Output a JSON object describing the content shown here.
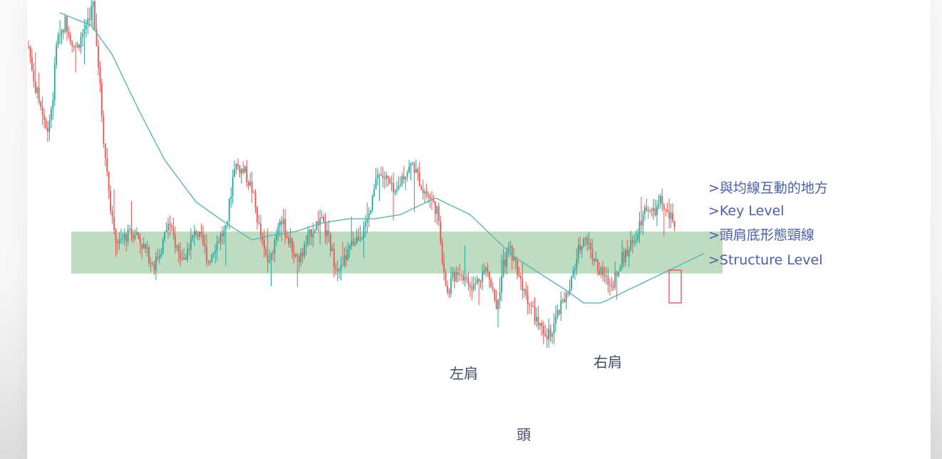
{
  "chart_data": {
    "type": "candlestick",
    "title": "",
    "xlabel": "",
    "ylabel": "",
    "ylim": [
      0,
      100
    ],
    "colors": {
      "up": "#26a69a",
      "down": "#ef5350",
      "ma": "#5fb3b3",
      "zone": "#8dc08d",
      "marker": "#d9534f"
    },
    "annotations": {
      "notes": [
        ">與均線互動的地方",
        ">Key Level",
        ">頭肩底形態頸線",
        ">Structure Level"
      ],
      "left_shoulder": "左肩",
      "head": "頭",
      "right_shoulder": "右肩"
    },
    "key_level_zone": {
      "from": 38,
      "to": 48
    },
    "price_path": [
      [
        0,
        92
      ],
      [
        4,
        82
      ],
      [
        8,
        77
      ],
      [
        11,
        72
      ],
      [
        14,
        80
      ],
      [
        16,
        93
      ],
      [
        21,
        98
      ],
      [
        27,
        91
      ],
      [
        31,
        95
      ],
      [
        37,
        102
      ],
      [
        40,
        88
      ],
      [
        43,
        70
      ],
      [
        46,
        58
      ],
      [
        49,
        47
      ],
      [
        52,
        45
      ],
      [
        56,
        47
      ],
      [
        61,
        48
      ],
      [
        65,
        45
      ],
      [
        69,
        42
      ],
      [
        72,
        40
      ],
      [
        76,
        44
      ],
      [
        80,
        50
      ],
      [
        86,
        43
      ],
      [
        89,
        41
      ],
      [
        92,
        45
      ],
      [
        96,
        48
      ],
      [
        100,
        45
      ],
      [
        103,
        41
      ],
      [
        106,
        44
      ],
      [
        110,
        47
      ],
      [
        113,
        48
      ],
      [
        118,
        64
      ],
      [
        124,
        62
      ],
      [
        128,
        58
      ],
      [
        132,
        49
      ],
      [
        135,
        43
      ],
      [
        138,
        40
      ],
      [
        140,
        44
      ],
      [
        144,
        52
      ],
      [
        148,
        47
      ],
      [
        152,
        43
      ],
      [
        155,
        41
      ],
      [
        158,
        44
      ],
      [
        162,
        48
      ],
      [
        167,
        51
      ],
      [
        172,
        46
      ],
      [
        175,
        41
      ],
      [
        179,
        39
      ],
      [
        183,
        43
      ],
      [
        187,
        46
      ],
      [
        192,
        48
      ],
      [
        196,
        53
      ],
      [
        200,
        62
      ],
      [
        206,
        60
      ],
      [
        210,
        56
      ],
      [
        214,
        61
      ],
      [
        220,
        64
      ],
      [
        226,
        58
      ],
      [
        230,
        56
      ],
      [
        234,
        53
      ],
      [
        236,
        45
      ],
      [
        238,
        39
      ],
      [
        240,
        33
      ],
      [
        242,
        36
      ],
      [
        246,
        39
      ],
      [
        250,
        37
      ],
      [
        254,
        34
      ],
      [
        258,
        37
      ],
      [
        262,
        39
      ],
      [
        266,
        35
      ],
      [
        268,
        30
      ],
      [
        272,
        40
      ],
      [
        276,
        44
      ],
      [
        280,
        39
      ],
      [
        284,
        34
      ],
      [
        288,
        30
      ],
      [
        292,
        26
      ],
      [
        296,
        22
      ],
      [
        300,
        25
      ],
      [
        305,
        30
      ],
      [
        310,
        34
      ],
      [
        314,
        42
      ],
      [
        318,
        47
      ],
      [
        322,
        44
      ],
      [
        326,
        39
      ],
      [
        330,
        37
      ],
      [
        334,
        35
      ],
      [
        338,
        40
      ],
      [
        342,
        43
      ],
      [
        346,
        45
      ],
      [
        350,
        50
      ],
      [
        354,
        54
      ],
      [
        358,
        52
      ],
      [
        362,
        55
      ],
      [
        366,
        52
      ],
      [
        370,
        50
      ]
    ],
    "ma_path": [
      [
        0,
        100
      ],
      [
        18,
        97
      ],
      [
        30,
        90
      ],
      [
        45,
        77
      ],
      [
        60,
        65
      ],
      [
        78,
        55
      ],
      [
        95,
        50
      ],
      [
        110,
        46
      ],
      [
        120,
        47
      ],
      [
        135,
        48
      ],
      [
        150,
        50
      ],
      [
        165,
        51
      ],
      [
        180,
        51
      ],
      [
        195,
        52
      ],
      [
        205,
        54
      ],
      [
        215,
        56
      ],
      [
        225,
        54
      ],
      [
        235,
        52
      ],
      [
        245,
        48
      ],
      [
        260,
        42
      ],
      [
        275,
        38
      ],
      [
        290,
        34
      ],
      [
        300,
        31
      ],
      [
        310,
        31
      ],
      [
        320,
        33
      ],
      [
        335,
        36
      ],
      [
        350,
        39
      ],
      [
        365,
        42
      ],
      [
        370,
        43
      ]
    ]
  }
}
